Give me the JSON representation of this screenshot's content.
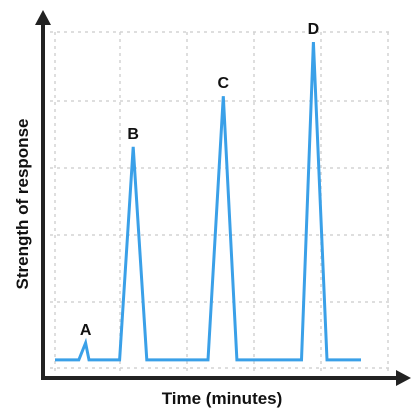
{
  "chart_data": {
    "type": "line",
    "title": "",
    "xlabel": "Time (minutes)",
    "ylabel": "Strength of response",
    "xlim": [
      0,
      10
    ],
    "ylim": [
      0,
      100
    ],
    "grid": true,
    "series": [
      {
        "color": "#3aa0e8",
        "x": [
          0,
          0.7,
          0.9,
          1.0,
          1.2,
          1.9,
          2.3,
          2.7,
          3.0,
          4.5,
          4.95,
          5.35,
          5.5,
          7.25,
          7.6,
          8.0,
          8.45,
          9.0
        ],
        "y": [
          3,
          3,
          8,
          3,
          3,
          3,
          66,
          3,
          3,
          3,
          81,
          3,
          3,
          3,
          97,
          3,
          3,
          3
        ]
      }
    ],
    "annotations": [
      {
        "text": "A",
        "x": 0.9,
        "y": 8
      },
      {
        "text": "B",
        "x": 2.3,
        "y": 66
      },
      {
        "text": "C",
        "x": 4.95,
        "y": 81
      },
      {
        "text": "D",
        "x": 7.6,
        "y": 97
      }
    ]
  }
}
